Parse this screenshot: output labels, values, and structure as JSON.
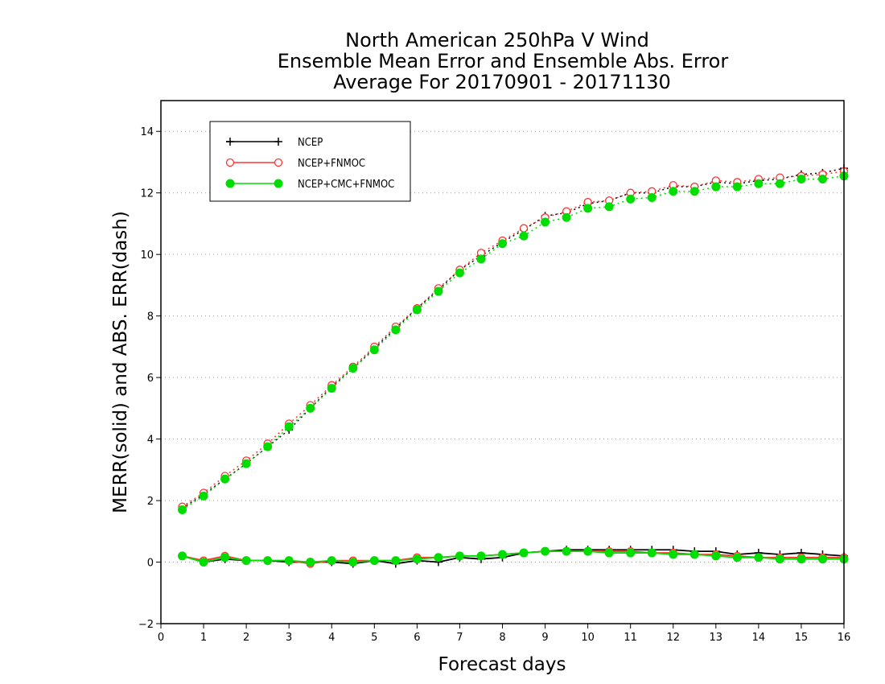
{
  "chart_data": {
    "type": "line",
    "title": [
      "North American 250hPa V Wind",
      "Ensemble Mean Error and Ensemble Abs. Error",
      "Average For 20170901 - 20171130"
    ],
    "xlabel": "Forecast days",
    "ylabel": "MERR(solid) and ABS. ERR(dash)",
    "xlim": [
      0,
      16
    ],
    "ylim": [
      -2,
      15
    ],
    "xticks": [
      0,
      1,
      2,
      3,
      4,
      5,
      6,
      7,
      8,
      9,
      10,
      11,
      12,
      13,
      14,
      15,
      16
    ],
    "yticks": [
      -2,
      0,
      2,
      4,
      6,
      8,
      10,
      12,
      14
    ],
    "grid": "horizontal dotted",
    "legend_position": "top-left",
    "x": [
      0.5,
      1,
      1.5,
      2,
      2.5,
      3,
      3.5,
      4,
      4.5,
      5,
      5.5,
      6,
      6.5,
      7,
      7.5,
      8,
      8.5,
      9,
      9.5,
      10,
      10.5,
      11,
      11.5,
      12,
      12.5,
      13,
      13.5,
      14,
      14.5,
      15,
      15.5,
      16
    ],
    "series": [
      {
        "name": "NCEP",
        "color": "#000000",
        "marker": "plus",
        "abs_err": [
          1.75,
          2.2,
          2.7,
          3.2,
          3.75,
          4.3,
          5.0,
          5.7,
          6.3,
          6.95,
          7.6,
          8.25,
          8.85,
          9.5,
          9.95,
          10.4,
          10.8,
          11.25,
          11.35,
          11.65,
          11.75,
          12.0,
          12.0,
          12.2,
          12.2,
          12.35,
          12.3,
          12.4,
          12.45,
          12.6,
          12.65,
          12.8
        ],
        "mean_err": [
          0.2,
          0.0,
          0.1,
          0.05,
          0.05,
          0.0,
          0.0,
          0.0,
          -0.05,
          0.05,
          -0.05,
          0.05,
          0.0,
          0.15,
          0.1,
          0.15,
          0.3,
          0.35,
          0.4,
          0.4,
          0.4,
          0.4,
          0.4,
          0.4,
          0.35,
          0.35,
          0.25,
          0.3,
          0.25,
          0.3,
          0.25,
          0.2
        ]
      },
      {
        "name": "NCEP+FNMOC",
        "color": "#ff3333",
        "marker": "open-circle",
        "abs_err": [
          1.8,
          2.25,
          2.8,
          3.3,
          3.85,
          4.5,
          5.1,
          5.75,
          6.35,
          7.0,
          7.65,
          8.25,
          8.9,
          9.5,
          10.05,
          10.45,
          10.85,
          11.2,
          11.4,
          11.7,
          11.75,
          12.0,
          12.05,
          12.25,
          12.2,
          12.4,
          12.35,
          12.45,
          12.5,
          12.55,
          12.6,
          12.7
        ],
        "mean_err": [
          0.2,
          0.05,
          0.2,
          0.05,
          0.05,
          0.05,
          -0.05,
          0.05,
          0.05,
          0.05,
          0.05,
          0.15,
          0.15,
          0.2,
          0.2,
          0.25,
          0.3,
          0.35,
          0.35,
          0.35,
          0.35,
          0.35,
          0.3,
          0.3,
          0.25,
          0.25,
          0.2,
          0.15,
          0.15,
          0.15,
          0.15,
          0.15
        ]
      },
      {
        "name": "NCEP+CMC+FNMOC",
        "color": "#00dd00",
        "marker": "filled-circle",
        "abs_err": [
          1.7,
          2.15,
          2.7,
          3.2,
          3.75,
          4.4,
          5.0,
          5.65,
          6.3,
          6.9,
          7.55,
          8.2,
          8.8,
          9.4,
          9.85,
          10.35,
          10.6,
          11.05,
          11.2,
          11.5,
          11.55,
          11.8,
          11.85,
          12.05,
          12.05,
          12.2,
          12.2,
          12.3,
          12.3,
          12.45,
          12.45,
          12.55
        ],
        "mean_err": [
          0.2,
          0.0,
          0.15,
          0.05,
          0.05,
          0.05,
          0.0,
          0.05,
          0.0,
          0.05,
          0.05,
          0.1,
          0.15,
          0.2,
          0.2,
          0.25,
          0.3,
          0.35,
          0.35,
          0.35,
          0.3,
          0.3,
          0.3,
          0.25,
          0.25,
          0.2,
          0.15,
          0.15,
          0.1,
          0.1,
          0.1,
          0.1
        ]
      }
    ]
  }
}
